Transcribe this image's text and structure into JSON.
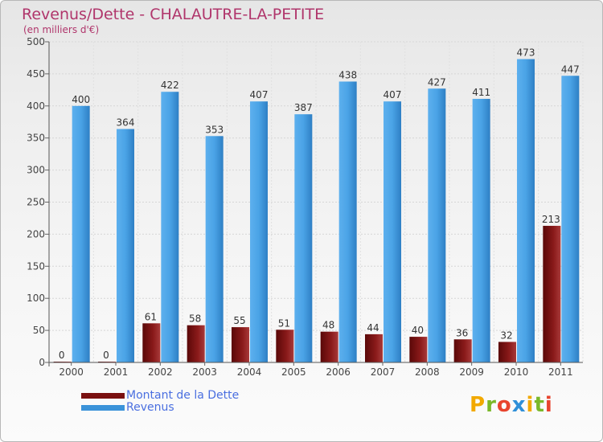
{
  "colors": {
    "title": "#b0356b",
    "dette": "#7a1010",
    "dette_light": "#a83a3a",
    "revenus": "#3b93d9",
    "revenus_light": "#5db0ee",
    "legend_text": "#4a6fe0"
  },
  "chart_data": {
    "type": "bar",
    "title": "Revenus/Dette - CHALAUTRE-LA-PETITE",
    "subtitle": "(en milliers d'€)",
    "xlabel": "",
    "ylabel": "",
    "ylim": [
      0,
      500
    ],
    "yticks": [
      "0",
      "50",
      "100",
      "150",
      "200",
      "250",
      "300",
      "350",
      "400",
      "450",
      "500"
    ],
    "categories": [
      "2000",
      "2001",
      "2002",
      "2003",
      "2004",
      "2005",
      "2006",
      "2007",
      "2008",
      "2009",
      "2010",
      "2011"
    ],
    "series": [
      {
        "name": "Montant de la Dette",
        "values": [
          0,
          0,
          61,
          58,
          55,
          51,
          48,
          44,
          40,
          36,
          32,
          213
        ]
      },
      {
        "name": "Revenus",
        "values": [
          400,
          364,
          422,
          353,
          407,
          387,
          438,
          407,
          427,
          411,
          473,
          447
        ]
      }
    ],
    "grid": true,
    "legend": "bottom-left"
  },
  "legend": {
    "items": [
      {
        "label": "Montant de la Dette"
      },
      {
        "label": "Revenus"
      }
    ]
  },
  "logo": {
    "letters": [
      "P",
      "r",
      "o",
      "x",
      "i",
      "t",
      "i"
    ],
    "colors": [
      "#f2a900",
      "#7ab829",
      "#e8442e",
      "#2f8fd8",
      "#f2a900",
      "#7ab829",
      "#e8442e"
    ]
  }
}
